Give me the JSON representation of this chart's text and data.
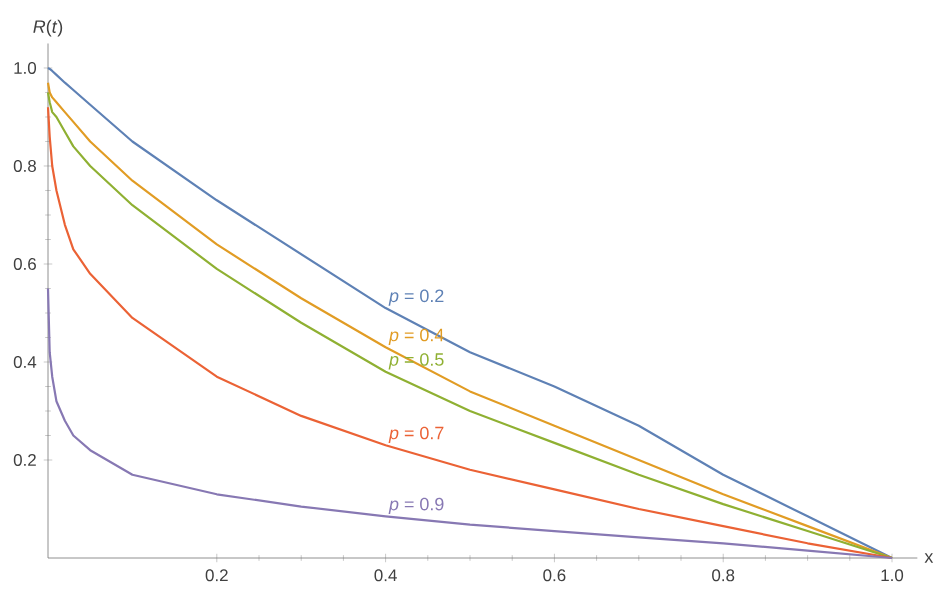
{
  "chart_data": {
    "type": "line",
    "xlabel": "x",
    "ylabel": "*R*(*t*)",
    "x": [
      0,
      0.002,
      0.005,
      0.01,
      0.02,
      0.03,
      0.05,
      0.1,
      0.2,
      0.3,
      0.4,
      0.5,
      0.6,
      0.7,
      0.8,
      0.9,
      1
    ],
    "series": [
      {
        "name": "*p* = 0.2",
        "color": "#5e81b5",
        "values": [
          1.0,
          0.998,
          0.994,
          0.986,
          0.97,
          0.955,
          0.925,
          0.85,
          0.73,
          0.62,
          0.51,
          0.42,
          0.35,
          0.27,
          0.17,
          0.085,
          0
        ]
      },
      {
        "name": "*p* = 0.4",
        "color": "#e19c24",
        "values": [
          0.97,
          0.95,
          0.94,
          0.93,
          0.91,
          0.89,
          0.85,
          0.77,
          0.64,
          0.53,
          0.43,
          0.34,
          0.27,
          0.2,
          0.13,
          0.065,
          0
        ]
      },
      {
        "name": "*p* = 0.5",
        "color": "#8fb032",
        "values": [
          0.95,
          0.93,
          0.91,
          0.9,
          0.87,
          0.84,
          0.8,
          0.72,
          0.59,
          0.48,
          0.38,
          0.3,
          0.235,
          0.17,
          0.11,
          0.055,
          0
        ]
      },
      {
        "name": "*p* = 0.7",
        "color": "#eb6235",
        "values": [
          0.92,
          0.86,
          0.8,
          0.75,
          0.68,
          0.63,
          0.58,
          0.49,
          0.37,
          0.29,
          0.23,
          0.18,
          0.14,
          0.1,
          0.065,
          0.03,
          0
        ]
      },
      {
        "name": "*p* = 0.9",
        "color": "#8778b3",
        "values": [
          0.55,
          0.42,
          0.37,
          0.32,
          0.28,
          0.25,
          0.22,
          0.17,
          0.13,
          0.105,
          0.085,
          0.068,
          0.055,
          0.042,
          0.03,
          0.015,
          0
        ]
      }
    ],
    "xlim": [
      0,
      1.03
    ],
    "ylim": [
      0,
      1.05
    ],
    "xticks": [
      0.2,
      0.4,
      0.6,
      0.8,
      {
        "value": 1,
        "label": "1.0"
      }
    ],
    "yticks": [
      0.2,
      0.4,
      0.6,
      0.8,
      {
        "value": 1,
        "label": "1.0"
      }
    ],
    "grid": false,
    "legend": false,
    "marker": "none",
    "line_style": "solid"
  }
}
